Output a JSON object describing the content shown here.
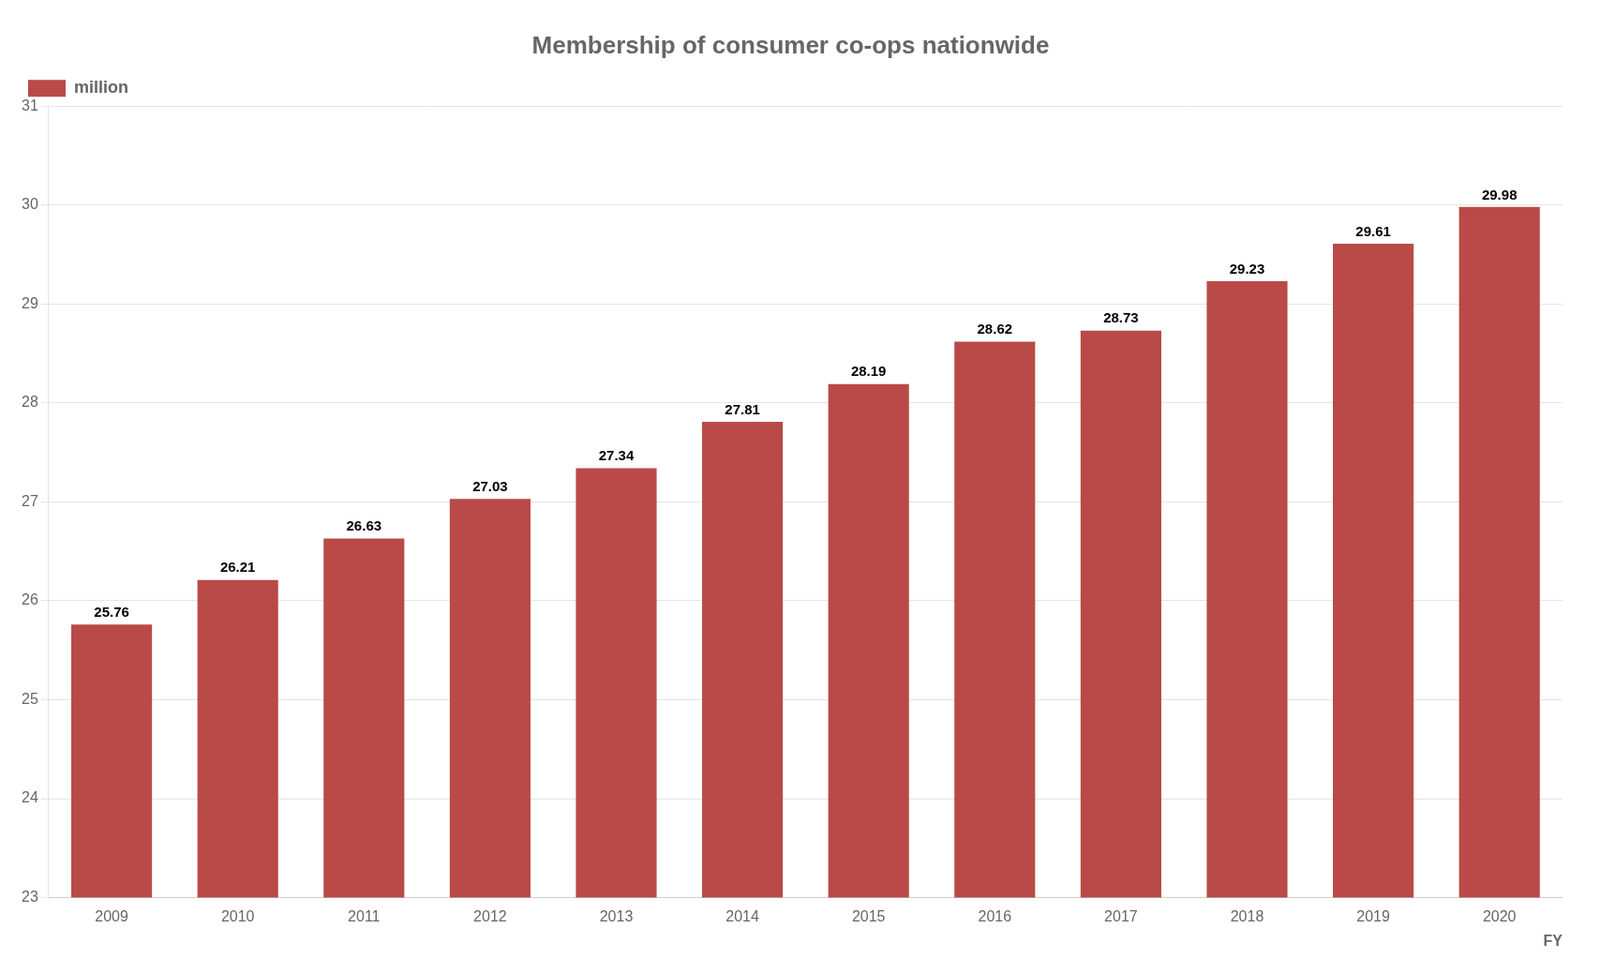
{
  "chart_data": {
    "type": "bar",
    "title": "Membership of consumer co-ops nationwide",
    "xlabel": "FY",
    "categories": [
      "2009",
      "2010",
      "2011",
      "2012",
      "2013",
      "2014",
      "2015",
      "2016",
      "2017",
      "2018",
      "2019",
      "2020"
    ],
    "series": [
      {
        "name": "million",
        "color": "#b94a48",
        "values": [
          25.76,
          26.21,
          26.63,
          27.03,
          27.34,
          27.81,
          28.19,
          28.62,
          28.73,
          29.23,
          29.61,
          29.98
        ]
      }
    ],
    "ylim": [
      23,
      31
    ],
    "yticks": [
      23,
      24,
      25,
      26,
      27,
      28,
      29,
      30,
      31
    ],
    "grid": true,
    "legend": "upper left",
    "data_labels": true
  }
}
